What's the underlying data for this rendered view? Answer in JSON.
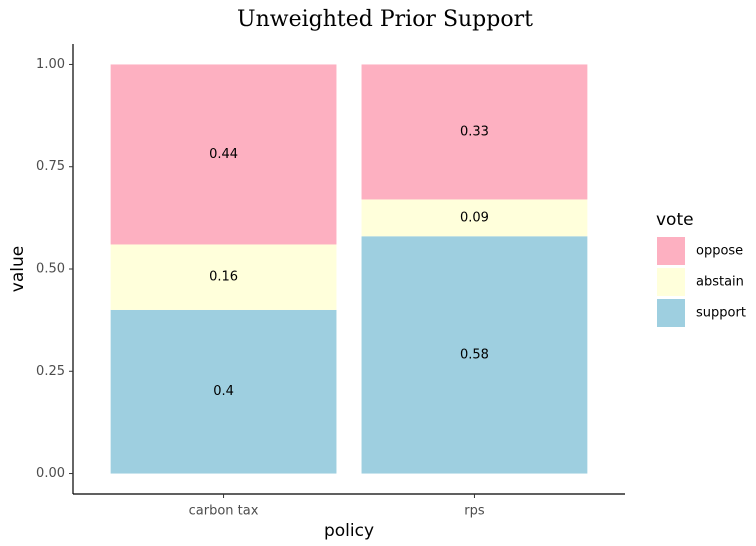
{
  "chart_data": {
    "type": "stacked_bar",
    "title": "Unweighted Prior Support",
    "x_label": "policy",
    "y_label": "value",
    "legend_title": "vote",
    "legend_position": "right",
    "categories": [
      "carbon tax",
      "rps"
    ],
    "series": [
      {
        "name": "oppose",
        "color": "#fdb0c1",
        "values": [
          0.44,
          0.33
        ]
      },
      {
        "name": "abstain",
        "color": "#ffffdb",
        "values": [
          0.16,
          0.09
        ]
      },
      {
        "name": "support",
        "color": "#9ecfe0",
        "values": [
          0.4,
          0.58
        ]
      }
    ],
    "ylim": [
      -0.05,
      1.05
    ],
    "yticks": [
      {
        "value": 0,
        "label": "0.00"
      },
      {
        "value": 0.25,
        "label": "0.25"
      },
      {
        "value": 0.5,
        "label": "0.50"
      },
      {
        "value": 0.75,
        "label": "0.75"
      },
      {
        "value": 1,
        "label": "1.00"
      }
    ],
    "grid": false
  }
}
